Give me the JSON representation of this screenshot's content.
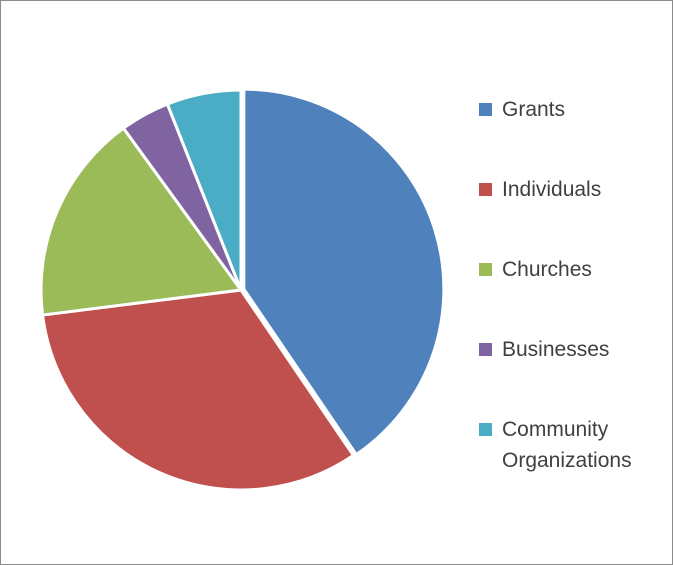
{
  "chart_data": {
    "type": "pie",
    "categories": [
      "Grants",
      "Individuals",
      "Churches",
      "Businesses",
      "Community\nOrganizations"
    ],
    "values": [
      40.5,
      32.5,
      17.0,
      4.0,
      6.0
    ],
    "colors": [
      "#4f81bd",
      "#c0504d",
      "#9bbb59",
      "#8064a2",
      "#4bacc6"
    ],
    "legend_position": "right",
    "start_angle_deg": 0,
    "direction": "clockwise"
  }
}
